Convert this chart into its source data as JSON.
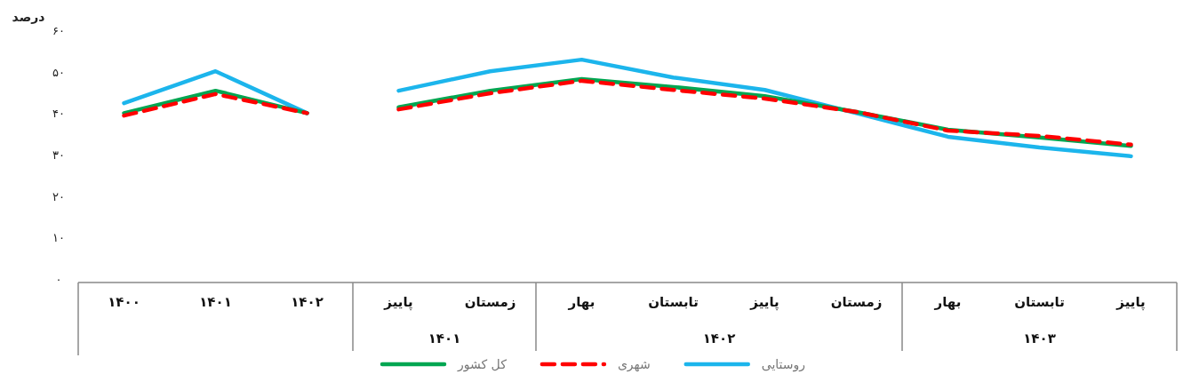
{
  "chart_data": {
    "type": "line",
    "ylabel": "درصد",
    "categories": [
      "۱۴۰۰",
      "۱۴۰۱",
      "۱۴۰۲",
      "پاییز",
      "زمستان",
      "بهار",
      "تابستان",
      "پاییز",
      "زمستان",
      "بهار",
      "تابستان",
      "پاییز"
    ],
    "annotations": [
      "۱۴۰۱",
      "۱۴۰۲",
      "۱۴۰۳"
    ],
    "ylim": [
      0,
      60
    ],
    "yticks": [
      {
        "value": 0,
        "label": "۰"
      },
      {
        "value": 10,
        "label": "۱۰"
      },
      {
        "value": 20,
        "label": "۲۰"
      },
      {
        "value": 30,
        "label": "۳۰"
      },
      {
        "value": 40,
        "label": "۴۰"
      },
      {
        "value": 50,
        "label": "۵۰"
      },
      {
        "value": 60,
        "label": "۶۰"
      }
    ],
    "grid": false,
    "legend": "bottom",
    "marker": "none",
    "series": [
      {
        "name": "کل کشور",
        "color": "#00a651",
        "line_style": "solid",
        "values": [
          40,
          45.4,
          40,
          null,
          null,
          null,
          null,
          null,
          null,
          null,
          null,
          null
        ]
      },
      {
        "name": "شهری",
        "color": "#ff0000",
        "line_style": "dashed",
        "values": [
          39.4,
          44.6,
          40,
          null,
          null,
          null,
          null,
          null,
          null,
          null,
          null,
          null
        ]
      },
      {
        "name": "روستایی",
        "color": "#1cb5ec",
        "line_style": "solid",
        "values": [
          42.4,
          50.1,
          40,
          null,
          null,
          null,
          null,
          null,
          null,
          null,
          null,
          null
        ]
      },
      {
        "color": "#00a651",
        "line_style": "solid",
        "values": [
          null,
          null,
          null,
          41.4,
          45.4,
          48.2,
          46.3,
          44.1,
          40.3,
          36,
          34.1,
          32.1
        ]
      },
      {
        "color": "#ff0000",
        "line_style": "dashed",
        "values": [
          null,
          null,
          null,
          40.9,
          44.8,
          47.8,
          45.6,
          43.5,
          40.3,
          35.8,
          34.5,
          32.4
        ]
      },
      {
        "color": "#1cb5ec",
        "line_style": "solid",
        "values": [
          null,
          null,
          null,
          45.4,
          50.1,
          52.9,
          48.6,
          45.6,
          40,
          34.3,
          31.7,
          29.6
        ]
      }
    ]
  }
}
